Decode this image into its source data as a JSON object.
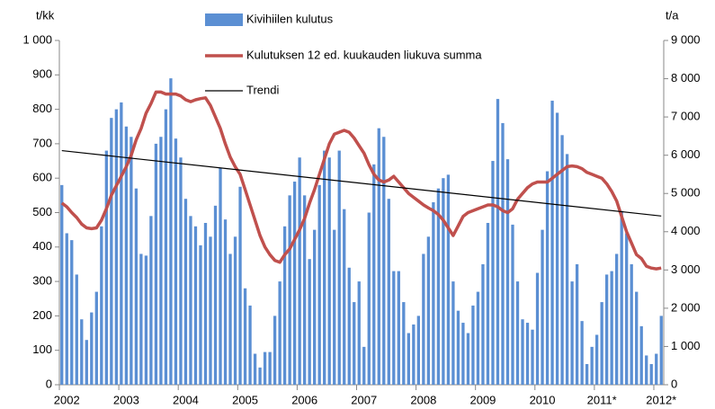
{
  "chart_data": {
    "type": "bar",
    "y_unit": "t/kk",
    "y2_unit": "t/a",
    "categories": [
      null,
      "2002",
      null,
      null,
      null,
      null,
      null,
      null,
      null,
      null,
      null,
      null,
      null,
      "2003",
      null,
      null,
      null,
      null,
      null,
      null,
      null,
      null,
      null,
      null,
      null,
      "2004",
      null,
      null,
      null,
      null,
      null,
      null,
      null,
      null,
      null,
      null,
      null,
      "2005",
      null,
      null,
      null,
      null,
      null,
      null,
      null,
      null,
      null,
      null,
      null,
      "2006",
      null,
      null,
      null,
      null,
      null,
      null,
      null,
      null,
      null,
      null,
      null,
      "2007",
      null,
      null,
      null,
      null,
      null,
      null,
      null,
      null,
      null,
      null,
      null,
      "2008",
      null,
      null,
      null,
      null,
      null,
      null,
      null,
      null,
      null,
      null,
      null,
      "2009",
      null,
      null,
      null,
      null,
      null,
      null,
      null,
      null,
      null,
      null,
      null,
      "2010",
      null,
      null,
      null,
      null,
      null,
      null,
      null,
      null,
      null,
      null,
      null,
      "2011*",
      null,
      null,
      null,
      null,
      null,
      null,
      null,
      null,
      null,
      null,
      null,
      "2012*"
    ],
    "series": [
      {
        "name": "Kivihiilen kulutus",
        "type": "bar",
        "color": "#5b8fd3",
        "values": [
          580,
          440,
          420,
          320,
          190,
          130,
          210,
          270,
          460,
          680,
          775,
          800,
          820,
          750,
          720,
          570,
          380,
          375,
          490,
          700,
          720,
          800,
          890,
          715,
          660,
          540,
          490,
          460,
          405,
          470,
          430,
          520,
          630,
          480,
          380,
          430,
          575,
          280,
          230,
          90,
          50,
          95,
          95,
          200,
          300,
          460,
          550,
          590,
          660,
          550,
          365,
          450,
          580,
          680,
          660,
          450,
          680,
          510,
          340,
          240,
          300,
          110,
          500,
          640,
          745,
          720,
          540,
          330,
          330,
          240,
          150,
          175,
          200,
          380,
          430,
          530,
          570,
          600,
          610,
          300,
          215,
          180,
          150,
          230,
          270,
          350,
          470,
          650,
          830,
          760,
          655,
          465,
          300,
          190,
          180,
          160,
          325,
          450,
          620,
          825,
          790,
          725,
          670,
          300,
          350,
          185,
          60,
          110,
          145,
          240,
          320,
          330,
          380,
          505,
          440,
          350,
          270,
          170,
          85,
          60,
          90,
          200
        ]
      },
      {
        "name": "Kulutuksen 12 ed. kuukauden liukuva summa",
        "type": "line",
        "axis": "y2",
        "color": "#c0504d",
        "values": [
          4750,
          4650,
          4500,
          4370,
          4200,
          4100,
          4080,
          4100,
          4300,
          4600,
          4950,
          5200,
          5450,
          5700,
          6000,
          6400,
          6700,
          7100,
          7350,
          7650,
          7650,
          7600,
          7600,
          7600,
          7550,
          7450,
          7400,
          7450,
          7480,
          7500,
          7300,
          7000,
          6700,
          6300,
          5950,
          5700,
          5500,
          5100,
          4700,
          4300,
          3900,
          3600,
          3400,
          3250,
          3200,
          3400,
          3550,
          3800,
          4050,
          4350,
          4750,
          5100,
          5500,
          5900,
          6300,
          6550,
          6600,
          6650,
          6600,
          6450,
          6250,
          6050,
          5750,
          5500,
          5350,
          5300,
          5350,
          5450,
          5300,
          5150,
          5000,
          4900,
          4800,
          4700,
          4620,
          4550,
          4450,
          4300,
          4100,
          3900,
          4150,
          4400,
          4500,
          4550,
          4600,
          4650,
          4700,
          4700,
          4650,
          4550,
          4500,
          4600,
          4850,
          5000,
          5150,
          5250,
          5300,
          5300,
          5300,
          5400,
          5500,
          5600,
          5700,
          5720,
          5700,
          5650,
          5550,
          5500,
          5450,
          5400,
          5250,
          5050,
          4800,
          4400,
          4000,
          3700,
          3400,
          3300,
          3100,
          3050,
          3030,
          3050
        ]
      }
    ],
    "trend": {
      "name": "Trendi",
      "color": "#000000",
      "values": [
        680,
        490
      ]
    },
    "ylim": [
      0,
      1000
    ],
    "yticks": [
      0,
      100,
      200,
      300,
      400,
      500,
      600,
      700,
      800,
      900,
      {
        "value": 1000,
        "label": "1 000"
      }
    ],
    "y2lim": [
      0,
      9000
    ],
    "y2ticks": [
      0,
      {
        "value": 1000,
        "label": "1 000"
      },
      {
        "value": 2000,
        "label": "2 000"
      },
      {
        "value": 3000,
        "label": "3 000"
      },
      {
        "value": 4000,
        "label": "4 000"
      },
      {
        "value": 5000,
        "label": "5 000"
      },
      {
        "value": 6000,
        "label": "6 000"
      },
      {
        "value": 7000,
        "label": "7 000"
      },
      {
        "value": 8000,
        "label": "8 000"
      },
      {
        "value": 9000,
        "label": "9 000"
      }
    ],
    "grid": false
  }
}
